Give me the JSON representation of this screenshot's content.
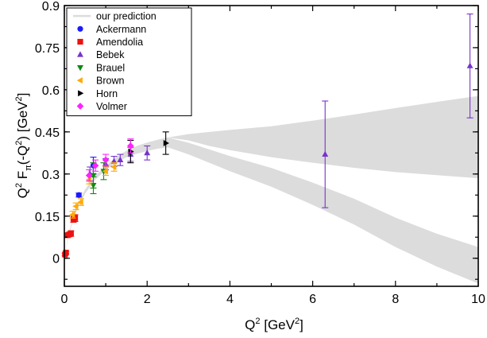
{
  "chart_data": {
    "type": "scatter",
    "title": "",
    "xlabel": "Q",
    "xlabel_sup": "2",
    "xlabel_tail": " [GeV",
    "xlabel_tail_sup": "2",
    "xlabel_end": "]",
    "ylabel_parts": {
      "q": "Q",
      "q_sup": "2",
      "f": " F",
      "f_sub": "π",
      "arg": "(-Q",
      "arg_sup": "2",
      "arg_end": ") [GeV",
      "unit_sup": "2",
      "end": "]"
    },
    "xlim": [
      0,
      10
    ],
    "ylim": [
      -0.1,
      0.9
    ],
    "x_ticks": [
      0,
      2,
      4,
      6,
      8,
      10
    ],
    "x_tick_labels": [
      "0",
      "2",
      "4",
      "6",
      "8",
      "10"
    ],
    "y_ticks": [
      0,
      0.15,
      0.3,
      0.45,
      0.6,
      0.75,
      0.9
    ],
    "y_tick_labels": [
      "0",
      "0.15",
      "0.3",
      "0.45",
      "0.6",
      "0.75",
      "0.9"
    ],
    "legend_position": "top-left",
    "band": {
      "name": "our prediction",
      "color": "#dcdcdc",
      "x": [
        0,
        0.05,
        0.1,
        0.2,
        0.3,
        0.5,
        0.75,
        1.0,
        1.25,
        1.5,
        1.75,
        2.0,
        2.25,
        2.5,
        3,
        3.5,
        4,
        5,
        6,
        7,
        8,
        9,
        10
      ],
      "upper": [
        0,
        0.045,
        0.085,
        0.14,
        0.185,
        0.245,
        0.295,
        0.33,
        0.36,
        0.383,
        0.4,
        0.412,
        0.422,
        0.43,
        0.442,
        0.45,
        0.457,
        0.47,
        0.49,
        0.512,
        0.535,
        0.557,
        0.578
      ],
      "lower": [
        0,
        0.04,
        0.075,
        0.13,
        0.17,
        0.23,
        0.28,
        0.315,
        0.34,
        0.36,
        0.372,
        0.382,
        0.39,
        0.395,
        0.37,
        0.34,
        0.31,
        0.255,
        0.19,
        0.12,
        0.04,
        -0.03,
        -0.09
      ],
      "upper_right": [
        0,
        0.045,
        0.085,
        0.14,
        0.185,
        0.245,
        0.295,
        0.33,
        0.36,
        0.383,
        0.4,
        0.412,
        0.422,
        0.43,
        0.42,
        0.4,
        0.385,
        0.36,
        0.34,
        0.322,
        0.307,
        0.296,
        0.285
      ],
      "lower_right": [
        0,
        0.04,
        0.075,
        0.13,
        0.17,
        0.23,
        0.28,
        0.315,
        0.34,
        0.36,
        0.372,
        0.382,
        0.39,
        0.395,
        0.37,
        0.34,
        0.31,
        0.255,
        0.19,
        0.12,
        0.04,
        -0.03,
        -0.09
      ]
    },
    "series": [
      {
        "name": "Ackermann",
        "marker": "circle",
        "color": "#1a1aff",
        "points": [
          {
            "x": 0.35,
            "y": 0.225,
            "err": 0.007
          },
          {
            "x": 0.7,
            "y": 0.33,
            "err": 0.03
          }
        ]
      },
      {
        "name": "Amendolia",
        "marker": "square",
        "color": "#ee1111",
        "points": [
          {
            "x": 0.015,
            "y": 0.013,
            "err": 0.004
          },
          {
            "x": 0.04,
            "y": 0.02,
            "err": 0.004
          },
          {
            "x": 0.08,
            "y": 0.082,
            "err": 0.007
          },
          {
            "x": 0.12,
            "y": 0.085,
            "err": 0.007
          },
          {
            "x": 0.16,
            "y": 0.088,
            "err": 0.01
          },
          {
            "x": 0.22,
            "y": 0.14,
            "err": 0.012
          },
          {
            "x": 0.26,
            "y": 0.143,
            "err": 0.012
          }
        ]
      },
      {
        "name": "Bebek",
        "marker": "triangle-up",
        "color": "#7733cc",
        "points": [
          {
            "x": 0.62,
            "y": 0.3,
            "err": 0.025
          },
          {
            "x": 1.0,
            "y": 0.335,
            "err": 0.02
          },
          {
            "x": 1.2,
            "y": 0.345,
            "err": 0.018
          },
          {
            "x": 1.35,
            "y": 0.35,
            "err": 0.02
          },
          {
            "x": 1.6,
            "y": 0.37,
            "err": 0.025
          },
          {
            "x": 2.0,
            "y": 0.375,
            "err": 0.025
          },
          {
            "x": 6.3,
            "y": 0.37,
            "err": 0.19
          },
          {
            "x": 9.8,
            "y": 0.685,
            "err": 0.185
          }
        ]
      },
      {
        "name": "Brauel",
        "marker": "triangle-down",
        "color": "#118811",
        "points": [
          {
            "x": 0.7,
            "y": 0.26,
            "err": 0.03
          },
          {
            "x": 0.7,
            "y": 0.295,
            "err": 0.045
          },
          {
            "x": 0.95,
            "y": 0.31,
            "err": 0.03
          }
        ]
      },
      {
        "name": "Brown",
        "marker": "triangle-left",
        "color": "#ffaa00",
        "points": [
          {
            "x": 0.2,
            "y": 0.155,
            "err": 0.012
          },
          {
            "x": 0.28,
            "y": 0.185,
            "err": 0.012
          },
          {
            "x": 0.4,
            "y": 0.2,
            "err": 0.012
          },
          {
            "x": 0.6,
            "y": 0.28,
            "err": 0.015
          },
          {
            "x": 1.0,
            "y": 0.31,
            "err": 0.015
          },
          {
            "x": 1.2,
            "y": 0.325,
            "err": 0.015
          }
        ]
      },
      {
        "name": "Horn",
        "marker": "triangle-right",
        "color": "#000000",
        "points": [
          {
            "x": 1.6,
            "y": 0.38,
            "err": 0.04
          },
          {
            "x": 2.45,
            "y": 0.41,
            "err": 0.04
          }
        ]
      },
      {
        "name": "Volmer",
        "marker": "diamond",
        "color": "#ff22ff",
        "points": [
          {
            "x": 0.6,
            "y": 0.295,
            "err": 0.02
          },
          {
            "x": 0.75,
            "y": 0.33,
            "err": 0.02
          },
          {
            "x": 1.0,
            "y": 0.35,
            "err": 0.02
          },
          {
            "x": 1.6,
            "y": 0.4,
            "err": 0.025
          }
        ]
      }
    ]
  }
}
